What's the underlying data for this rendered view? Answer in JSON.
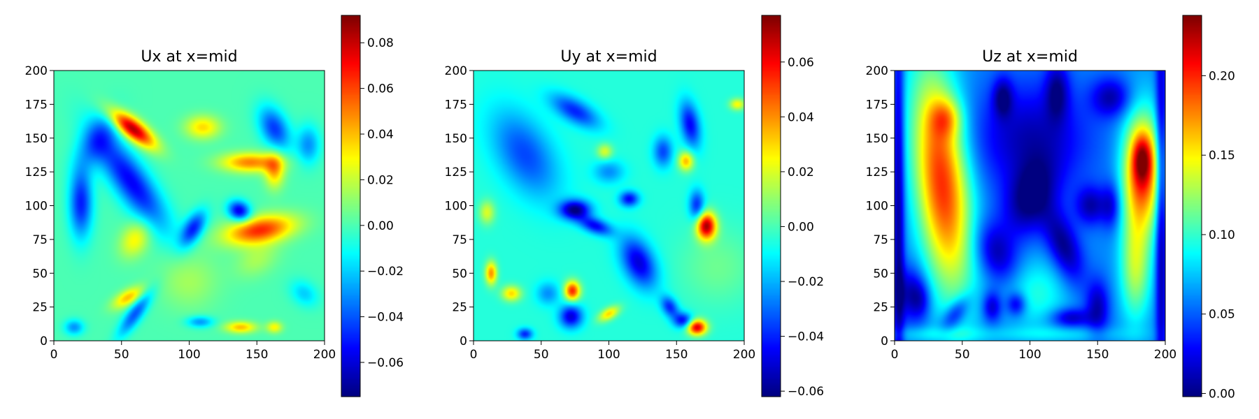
{
  "chart_data": [
    {
      "type": "heatmap",
      "title": "Ux at x=mid",
      "xlim": [
        0,
        200
      ],
      "ylim": [
        0,
        200
      ],
      "x_ticks": [
        0,
        50,
        100,
        150,
        200
      ],
      "y_ticks": [
        0,
        25,
        50,
        75,
        100,
        125,
        150,
        175,
        200
      ],
      "x_tick_labels": [
        "0",
        "50",
        "100",
        "150",
        "200"
      ],
      "y_tick_labels": [
        "0",
        "25",
        "50",
        "75",
        "100",
        "125",
        "150",
        "175",
        "200"
      ],
      "colormap": "jet",
      "color_range": [
        -0.075,
        0.092
      ],
      "colorbar_ticks": [
        -0.06,
        -0.04,
        -0.02,
        0.0,
        0.02,
        0.04,
        0.06,
        0.08
      ],
      "colorbar_tick_labels": [
        "−0.06",
        "−0.04",
        "−0.02",
        "0.00",
        "0.02",
        "0.04",
        "0.06",
        "0.08"
      ],
      "background_value": 0.0,
      "features": [
        {
          "x": 58,
          "y": 157,
          "sx": 14,
          "sy": 5,
          "angle": -38,
          "value": 0.085
        },
        {
          "x": 57,
          "y": 118,
          "sx": 30,
          "sy": 9,
          "angle": -55,
          "value": -0.055
        },
        {
          "x": 20,
          "y": 102,
          "sx": 6,
          "sy": 18,
          "angle": 0,
          "value": -0.05
        },
        {
          "x": 32,
          "y": 148,
          "sx": 8,
          "sy": 16,
          "angle": -30,
          "value": -0.03
        },
        {
          "x": 110,
          "y": 158,
          "sx": 9,
          "sy": 6,
          "angle": 0,
          "value": 0.035
        },
        {
          "x": 145,
          "y": 132,
          "sx": 15,
          "sy": 5,
          "angle": 0,
          "value": 0.05
        },
        {
          "x": 163,
          "y": 126,
          "sx": 5,
          "sy": 9,
          "angle": 0,
          "value": 0.04
        },
        {
          "x": 152,
          "y": 82,
          "sx": 18,
          "sy": 7,
          "angle": 10,
          "value": 0.065
        },
        {
          "x": 137,
          "y": 96,
          "sx": 6,
          "sy": 5,
          "angle": -30,
          "value": -0.06
        },
        {
          "x": 103,
          "y": 83,
          "sx": 5,
          "sy": 10,
          "angle": -30,
          "value": -0.05
        },
        {
          "x": 163,
          "y": 157,
          "sx": 7,
          "sy": 12,
          "angle": 25,
          "value": -0.045
        },
        {
          "x": 188,
          "y": 145,
          "sx": 6,
          "sy": 10,
          "angle": 0,
          "value": -0.03
        },
        {
          "x": 60,
          "y": 75,
          "sx": 7,
          "sy": 10,
          "angle": -30,
          "value": 0.03
        },
        {
          "x": 55,
          "y": 32,
          "sx": 9,
          "sy": 4,
          "angle": 30,
          "value": 0.04
        },
        {
          "x": 60,
          "y": 20,
          "sx": 14,
          "sy": 4,
          "angle": 55,
          "value": -0.04
        },
        {
          "x": 138,
          "y": 10,
          "sx": 8,
          "sy": 3,
          "angle": 0,
          "value": 0.04
        },
        {
          "x": 163,
          "y": 10,
          "sx": 4,
          "sy": 3,
          "angle": 0,
          "value": 0.03
        },
        {
          "x": 15,
          "y": 10,
          "sx": 5,
          "sy": 4,
          "angle": 0,
          "value": -0.03
        },
        {
          "x": 108,
          "y": 14,
          "sx": 7,
          "sy": 3,
          "angle": 0,
          "value": -0.03
        },
        {
          "x": 100,
          "y": 45,
          "sx": 15,
          "sy": 15,
          "angle": 0,
          "value": 0.015
        },
        {
          "x": 185,
          "y": 35,
          "sx": 8,
          "sy": 6,
          "angle": -40,
          "value": -0.02
        },
        {
          "x": 150,
          "y": 60,
          "sx": 12,
          "sy": 8,
          "angle": 30,
          "value": 0.015
        }
      ]
    },
    {
      "type": "heatmap",
      "title": "Uy at x=mid",
      "xlim": [
        0,
        200
      ],
      "ylim": [
        0,
        200
      ],
      "x_ticks": [
        0,
        50,
        100,
        150,
        200
      ],
      "y_ticks": [
        0,
        25,
        50,
        75,
        100,
        125,
        150,
        175,
        200
      ],
      "x_tick_labels": [
        "0",
        "50",
        "100",
        "150",
        "200"
      ],
      "y_tick_labels": [
        "0",
        "25",
        "50",
        "75",
        "100",
        "125",
        "150",
        "175",
        "200"
      ],
      "colormap": "jet",
      "color_range": [
        -0.062,
        0.077
      ],
      "colorbar_ticks": [
        -0.06,
        -0.04,
        -0.02,
        0.0,
        0.02,
        0.04,
        0.06
      ],
      "colorbar_tick_labels": [
        "−0.06",
        "−0.04",
        "−0.02",
        "0.00",
        "0.02",
        "0.04",
        "0.06"
      ],
      "background_value": -0.005,
      "features": [
        {
          "x": 172,
          "y": 85,
          "sx": 5,
          "sy": 7,
          "angle": 0,
          "value": 0.075
        },
        {
          "x": 165,
          "y": 10,
          "sx": 5,
          "sy": 4,
          "angle": 0,
          "value": 0.07
        },
        {
          "x": 73,
          "y": 37,
          "sx": 4,
          "sy": 5,
          "angle": 0,
          "value": 0.06
        },
        {
          "x": 13,
          "y": 50,
          "sx": 3,
          "sy": 6,
          "angle": 0,
          "value": 0.045
        },
        {
          "x": 28,
          "y": 35,
          "sx": 5,
          "sy": 4,
          "angle": 0,
          "value": 0.035
        },
        {
          "x": 157,
          "y": 133,
          "sx": 4,
          "sy": 5,
          "angle": 0,
          "value": 0.04
        },
        {
          "x": 100,
          "y": 20,
          "sx": 6,
          "sy": 3,
          "angle": 30,
          "value": 0.035
        },
        {
          "x": 195,
          "y": 175,
          "sx": 4,
          "sy": 3,
          "angle": 0,
          "value": 0.03
        },
        {
          "x": 97,
          "y": 140,
          "sx": 4,
          "sy": 4,
          "angle": 0,
          "value": 0.025
        },
        {
          "x": 10,
          "y": 95,
          "sx": 4,
          "sy": 6,
          "angle": 0,
          "value": 0.025
        },
        {
          "x": 75,
          "y": 97,
          "sx": 8,
          "sy": 5,
          "angle": 0,
          "value": -0.055
        },
        {
          "x": 90,
          "y": 85,
          "sx": 9,
          "sy": 4,
          "angle": -20,
          "value": -0.04
        },
        {
          "x": 122,
          "y": 58,
          "sx": 8,
          "sy": 14,
          "angle": 25,
          "value": -0.045
        },
        {
          "x": 115,
          "y": 105,
          "sx": 5,
          "sy": 4,
          "angle": 0,
          "value": -0.04
        },
        {
          "x": 72,
          "y": 18,
          "sx": 6,
          "sy": 6,
          "angle": 0,
          "value": -0.045
        },
        {
          "x": 155,
          "y": 15,
          "sx": 5,
          "sy": 4,
          "angle": 0,
          "value": -0.04
        },
        {
          "x": 145,
          "y": 25,
          "sx": 4,
          "sy": 6,
          "angle": 30,
          "value": -0.035
        },
        {
          "x": 38,
          "y": 138,
          "sx": 14,
          "sy": 25,
          "angle": 30,
          "value": -0.03
        },
        {
          "x": 75,
          "y": 170,
          "sx": 14,
          "sy": 6,
          "angle": -30,
          "value": -0.035
        },
        {
          "x": 160,
          "y": 160,
          "sx": 5,
          "sy": 12,
          "angle": 10,
          "value": -0.04
        },
        {
          "x": 165,
          "y": 100,
          "sx": 4,
          "sy": 8,
          "angle": 0,
          "value": -0.035
        },
        {
          "x": 140,
          "y": 140,
          "sx": 5,
          "sy": 8,
          "angle": 0,
          "value": -0.03
        },
        {
          "x": 100,
          "y": 125,
          "sx": 8,
          "sy": 6,
          "angle": 0,
          "value": -0.02
        },
        {
          "x": 55,
          "y": 35,
          "sx": 6,
          "sy": 6,
          "angle": 0,
          "value": -0.02
        },
        {
          "x": 38,
          "y": 5,
          "sx": 4,
          "sy": 3,
          "angle": 0,
          "value": -0.035
        },
        {
          "x": 180,
          "y": 55,
          "sx": 20,
          "sy": 20,
          "angle": 0,
          "value": 0.01
        }
      ]
    },
    {
      "type": "heatmap",
      "title": "Uz at x=mid",
      "xlim": [
        0,
        200
      ],
      "ylim": [
        0,
        200
      ],
      "x_ticks": [
        0,
        50,
        100,
        150,
        200
      ],
      "y_ticks": [
        0,
        25,
        50,
        75,
        100,
        125,
        150,
        175,
        200
      ],
      "x_tick_labels": [
        "0",
        "50",
        "100",
        "150",
        "200"
      ],
      "y_tick_labels": [
        "0",
        "25",
        "50",
        "75",
        "100",
        "125",
        "150",
        "175",
        "200"
      ],
      "colormap": "jet",
      "color_range": [
        -0.002,
        0.238
      ],
      "colorbar_ticks": [
        0.0,
        0.05,
        0.1,
        0.15,
        0.2
      ],
      "colorbar_tick_labels": [
        "0.00",
        "0.05",
        "0.10",
        "0.15",
        "0.20"
      ],
      "background_value": 0.06,
      "features": [
        {
          "x": 35,
          "y": 118,
          "sx": 14,
          "sy": 58,
          "angle": 6,
          "value": 0.14
        },
        {
          "x": 38,
          "y": 165,
          "sx": 8,
          "sy": 10,
          "angle": 0,
          "value": 0.05
        },
        {
          "x": 183,
          "y": 125,
          "sx": 10,
          "sy": 30,
          "angle": 0,
          "value": 0.14
        },
        {
          "x": 183,
          "y": 135,
          "sx": 5,
          "sy": 12,
          "angle": 0,
          "value": 0.06
        },
        {
          "x": 178,
          "y": 55,
          "sx": 8,
          "sy": 28,
          "angle": 0,
          "value": 0.07
        },
        {
          "x": 105,
          "y": 35,
          "sx": 16,
          "sy": 18,
          "angle": 0,
          "value": 0.035
        },
        {
          "x": 3,
          "y": 100,
          "sx": 3,
          "sy": 110,
          "angle": 0,
          "value": -0.06
        },
        {
          "x": 197,
          "y": 100,
          "sx": 3,
          "sy": 110,
          "angle": 0,
          "value": -0.06
        },
        {
          "x": 100,
          "y": 150,
          "sx": 30,
          "sy": 28,
          "angle": 0,
          "value": -0.05
        },
        {
          "x": 100,
          "y": 105,
          "sx": 12,
          "sy": 20,
          "angle": -20,
          "value": -0.06
        },
        {
          "x": 75,
          "y": 65,
          "sx": 10,
          "sy": 16,
          "angle": 20,
          "value": -0.05
        },
        {
          "x": 125,
          "y": 70,
          "sx": 8,
          "sy": 20,
          "angle": 20,
          "value": -0.06
        },
        {
          "x": 145,
          "y": 100,
          "sx": 8,
          "sy": 10,
          "angle": 0,
          "value": -0.05
        },
        {
          "x": 160,
          "y": 100,
          "sx": 5,
          "sy": 12,
          "angle": 0,
          "value": -0.04
        },
        {
          "x": 120,
          "y": 185,
          "sx": 6,
          "sy": 15,
          "angle": 0,
          "value": -0.05
        },
        {
          "x": 80,
          "y": 180,
          "sx": 5,
          "sy": 10,
          "angle": 0,
          "value": -0.05
        },
        {
          "x": 160,
          "y": 180,
          "sx": 10,
          "sy": 10,
          "angle": 0,
          "value": -0.05
        },
        {
          "x": 12,
          "y": 35,
          "sx": 7,
          "sy": 14,
          "angle": 0,
          "value": -0.05
        },
        {
          "x": 45,
          "y": 20,
          "sx": 10,
          "sy": 5,
          "angle": 55,
          "value": -0.05
        },
        {
          "x": 72,
          "y": 25,
          "sx": 5,
          "sy": 8,
          "angle": 0,
          "value": -0.05
        },
        {
          "x": 90,
          "y": 27,
          "sx": 5,
          "sy": 6,
          "angle": 0,
          "value": -0.05
        },
        {
          "x": 130,
          "y": 17,
          "sx": 10,
          "sy": 5,
          "angle": 0,
          "value": -0.05
        },
        {
          "x": 150,
          "y": 25,
          "sx": 6,
          "sy": 14,
          "angle": 0,
          "value": -0.05
        },
        {
          "x": 20,
          "y": 30,
          "sx": 5,
          "sy": 10,
          "angle": 0,
          "value": -0.03
        },
        {
          "x": 25,
          "y": 5,
          "sx": 25,
          "sy": 4,
          "angle": 0,
          "value": 0.02
        },
        {
          "x": 120,
          "y": 5,
          "sx": 40,
          "sy": 4,
          "angle": 0,
          "value": 0.02
        }
      ]
    }
  ]
}
